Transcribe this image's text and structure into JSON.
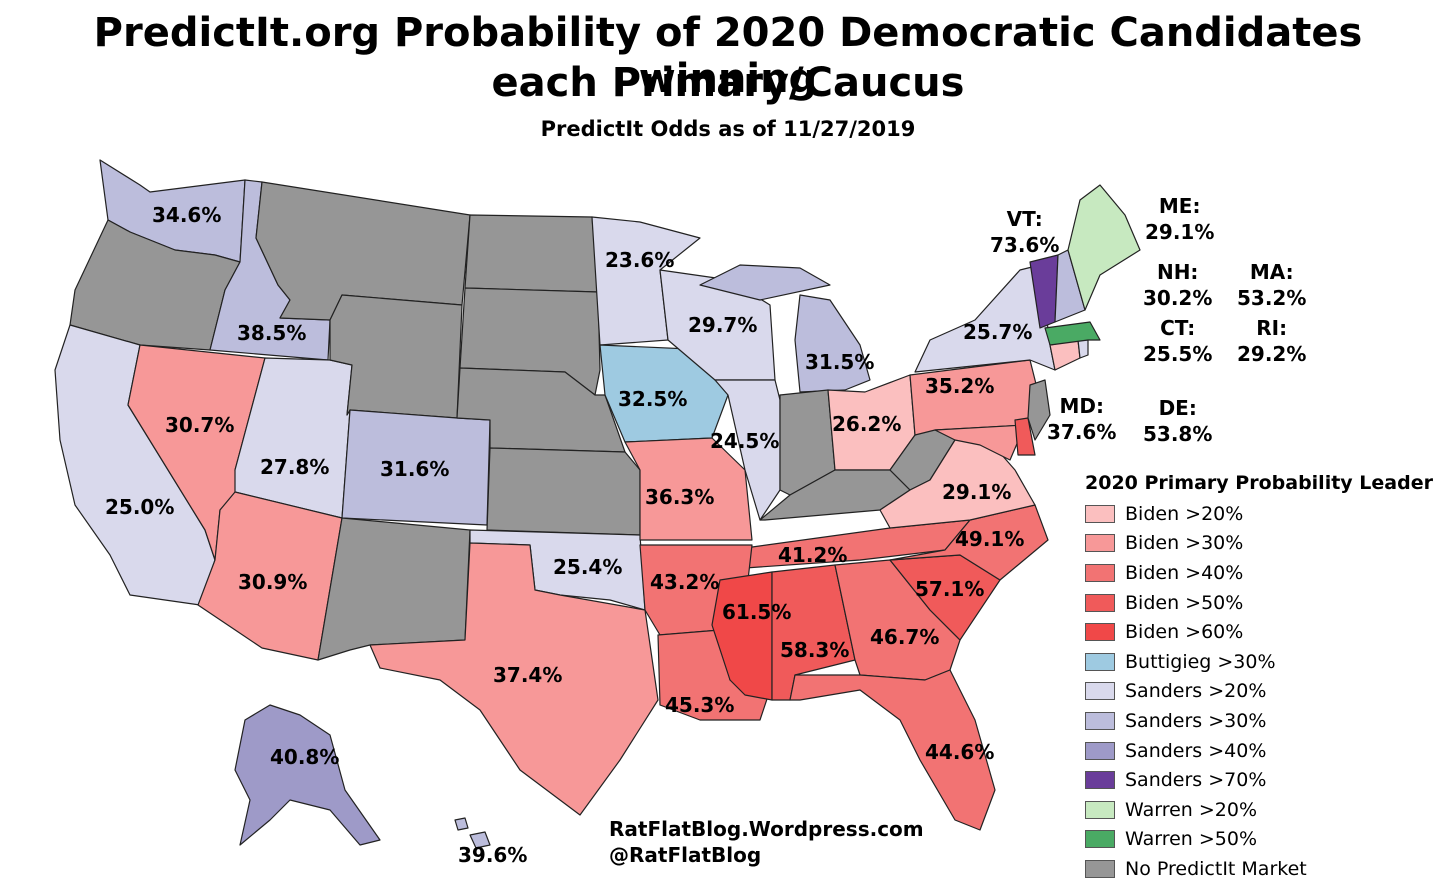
{
  "title_line1": "PredictIt.org Probability of 2020 Democratic Candidates winning",
  "title_line2": "each Primary/Caucus",
  "subtitle": "PredictIt Odds as of 11/27/2019",
  "colors": {
    "biden20": "#fbbfbf",
    "biden30": "#f79898",
    "biden40": "#f27373",
    "biden50": "#f05a5a",
    "biden60": "#f04848",
    "buttigieg30": "#9ecae1",
    "sanders20": "#d9d9ec",
    "sanders30": "#bcbddc",
    "sanders40": "#9e9ac8",
    "sanders70": "#6a3d9a",
    "warren20": "#c7e9c0",
    "warren50": "#4aaa64",
    "nomarket": "#969696",
    "stroke": "#222222"
  },
  "states": {
    "WA": "34.6%",
    "OR": "",
    "CA": "25.0%",
    "ID": "38.5%",
    "NV": "30.7%",
    "UT": "27.8%",
    "AZ": "30.9%",
    "CO": "31.6%",
    "MN": "23.6%",
    "WI": "29.7%",
    "MI": "31.5%",
    "IA": "32.5%",
    "IL": "24.5%",
    "MO": "36.3%",
    "OK": "25.4%",
    "TX": "37.4%",
    "AR": "43.2%",
    "LA": "45.3%",
    "MS": "61.5%",
    "AL": "58.3%",
    "GA": "46.7%",
    "FL": "44.6%",
    "SC": "57.1%",
    "NC": "49.1%",
    "TN": "41.2%",
    "VA": "29.1%",
    "OH": "26.2%",
    "PA": "35.2%",
    "NY": "25.7%",
    "AK": "40.8%",
    "HI": "39.6%"
  },
  "northeast": {
    "VT": {
      "abbr": "VT:",
      "value": "73.6%"
    },
    "ME": {
      "abbr": "ME:",
      "value": "29.1%"
    },
    "NH": {
      "abbr": "NH:",
      "value": "30.2%"
    },
    "MA": {
      "abbr": "MA:",
      "value": "53.2%"
    },
    "CT": {
      "abbr": "CT:",
      "value": "25.5%"
    },
    "RI": {
      "abbr": "RI:",
      "value": "29.2%"
    },
    "MD": {
      "abbr": "MD:",
      "value": "37.6%"
    },
    "DE": {
      "abbr": "DE:",
      "value": "53.8%"
    }
  },
  "legend": {
    "title": "2020 Primary Probability Leader",
    "items": [
      {
        "label": "Biden >20%",
        "color": "#fbbfbf"
      },
      {
        "label": "Biden >30%",
        "color": "#f79898"
      },
      {
        "label": "Biden >40%",
        "color": "#f27373"
      },
      {
        "label": "Biden >50%",
        "color": "#f05a5a"
      },
      {
        "label": "Biden >60%",
        "color": "#f04848"
      },
      {
        "label": "Buttigieg >30%",
        "color": "#9ecae1"
      },
      {
        "label": "Sanders >20%",
        "color": "#d9d9ec"
      },
      {
        "label": "Sanders >30%",
        "color": "#bcbddc"
      },
      {
        "label": "Sanders >40%",
        "color": "#9e9ac8"
      },
      {
        "label": "Sanders >70%",
        "color": "#6a3d9a"
      },
      {
        "label": "Warren >20%",
        "color": "#c7e9c0"
      },
      {
        "label": "Warren >50%",
        "color": "#4aaa64"
      },
      {
        "label": "No PredictIt Market",
        "color": "#969696"
      }
    ]
  },
  "credits": {
    "line1": "RatFlatBlog.Wordpress.com",
    "line2": "@RatFlatBlog"
  }
}
